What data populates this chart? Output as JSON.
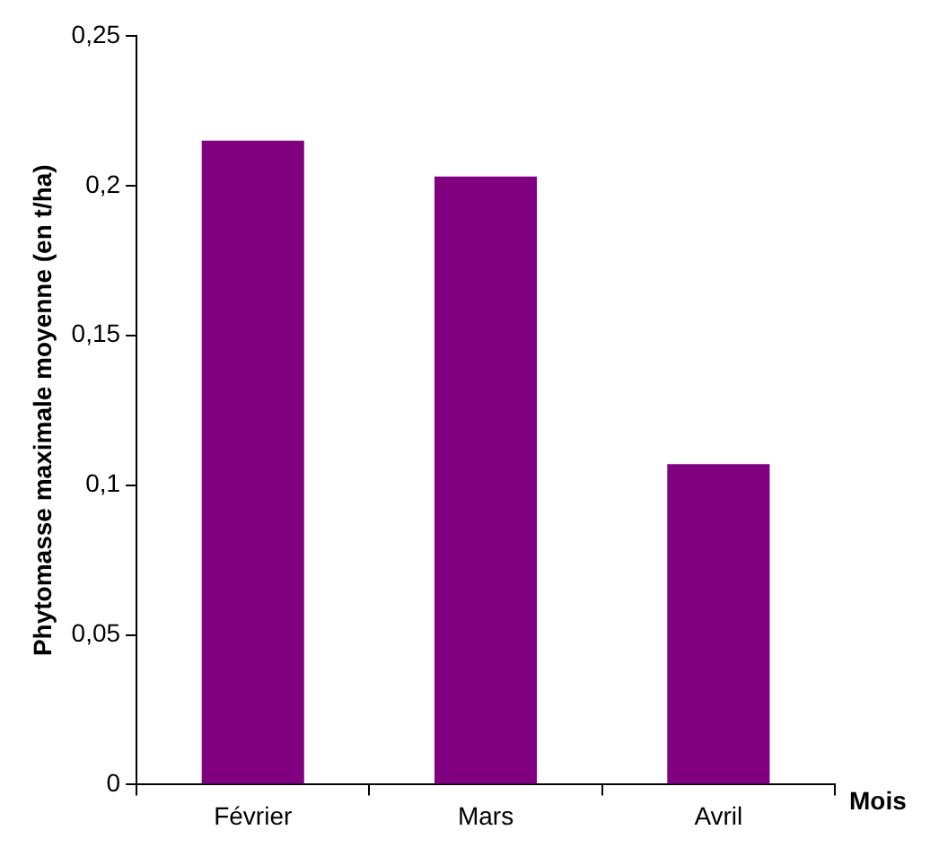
{
  "chart_data": {
    "type": "bar",
    "ylabel": "Phytomasse maximale moyenne (en t/ha)",
    "xlabel": "Mois",
    "categories": [
      "Février",
      "Mars",
      "Avril"
    ],
    "values": [
      0.215,
      0.203,
      0.107
    ],
    "color": "#800080",
    "ylim": [
      0,
      0.25
    ],
    "yticks": [
      0,
      {
        "value": 0.05,
        "label": "0,05"
      },
      {
        "value": 0.1,
        "label": "0,1"
      },
      {
        "value": 0.15,
        "label": "0,15"
      },
      {
        "value": 0.2,
        "label": "0,2"
      },
      {
        "value": 0.25,
        "label": "0,25"
      }
    ],
    "grid": false,
    "legend": false
  }
}
